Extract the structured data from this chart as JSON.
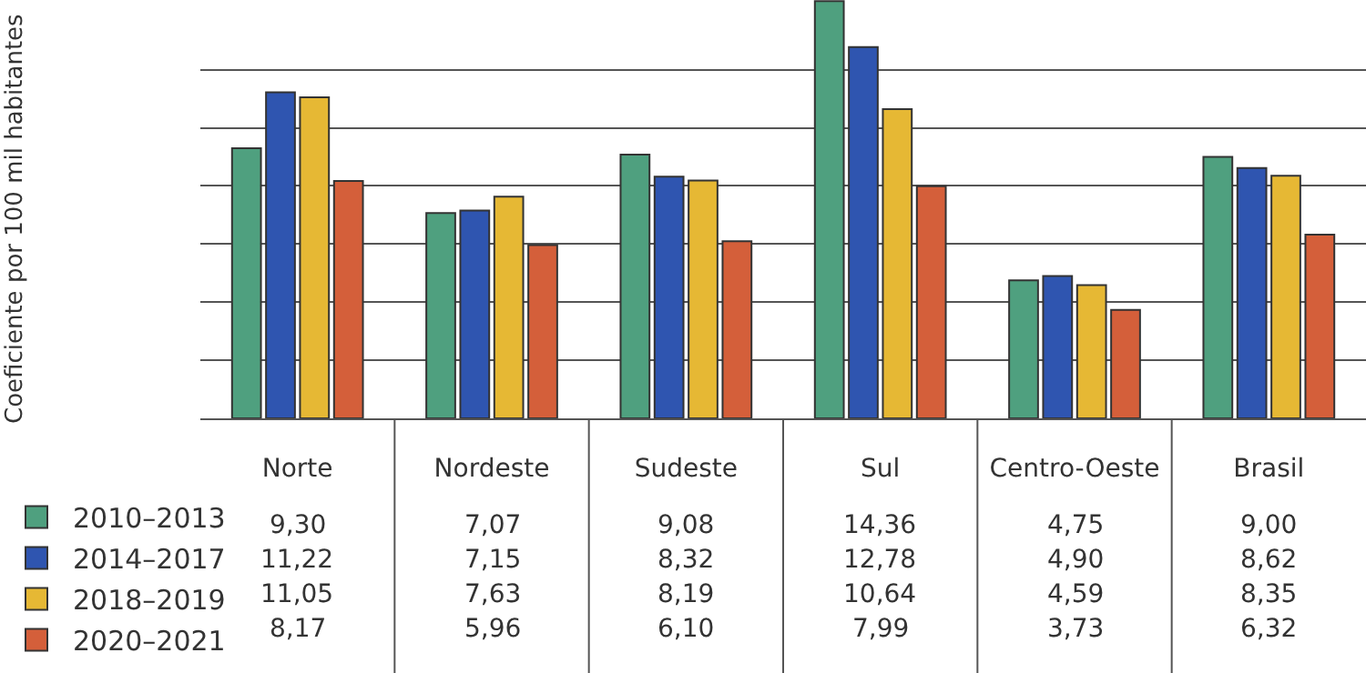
{
  "chart_data": {
    "type": "bar",
    "annotations": [
      "Coeficiente por 100 mil habitantes"
    ],
    "categories": [
      "Norte",
      "Nordeste",
      "Sudeste",
      "Sul",
      "Centro-Oeste",
      "Brasil"
    ],
    "series": [
      {
        "name": "2010–2013",
        "color": "#4fa07f",
        "values": [
          9.3,
          7.07,
          9.08,
          14.36,
          4.75,
          9.0
        ],
        "value_labels": [
          "9,30",
          "7,07",
          "9,08",
          "14,36",
          "4,75",
          "9,00"
        ]
      },
      {
        "name": "2014–2017",
        "color": "#2f55b0",
        "values": [
          11.22,
          7.15,
          8.32,
          12.78,
          4.9,
          8.62
        ],
        "value_labels": [
          "11,22",
          "7,15",
          "8,32",
          "12,78",
          "4,90",
          "8,62"
        ]
      },
      {
        "name": "2018–2019",
        "color": "#e6b834",
        "values": [
          11.05,
          7.63,
          8.19,
          10.64,
          4.59,
          8.35
        ],
        "value_labels": [
          "11,05",
          "7,63",
          "8,19",
          "10,64",
          "4,59",
          "8,35"
        ]
      },
      {
        "name": "2020–2021",
        "color": "#d45f3a",
        "values": [
          8.17,
          5.96,
          6.1,
          7.99,
          3.73,
          6.32
        ],
        "value_labels": [
          "8,17",
          "5,96",
          "6,10",
          "7,99",
          "3,73",
          "6,32"
        ]
      }
    ],
    "ylim": [
      0,
      14.4
    ],
    "yticks": [
      {
        "value": 2,
        "label": null
      },
      {
        "value": 4,
        "label": null
      },
      {
        "value": 6,
        "label": null
      },
      {
        "value": 8,
        "label": null
      },
      {
        "value": 10,
        "label": null
      },
      {
        "value": 12,
        "label": null
      }
    ],
    "tick_labels": "x",
    "grid": "y",
    "legend": "bottom left"
  }
}
